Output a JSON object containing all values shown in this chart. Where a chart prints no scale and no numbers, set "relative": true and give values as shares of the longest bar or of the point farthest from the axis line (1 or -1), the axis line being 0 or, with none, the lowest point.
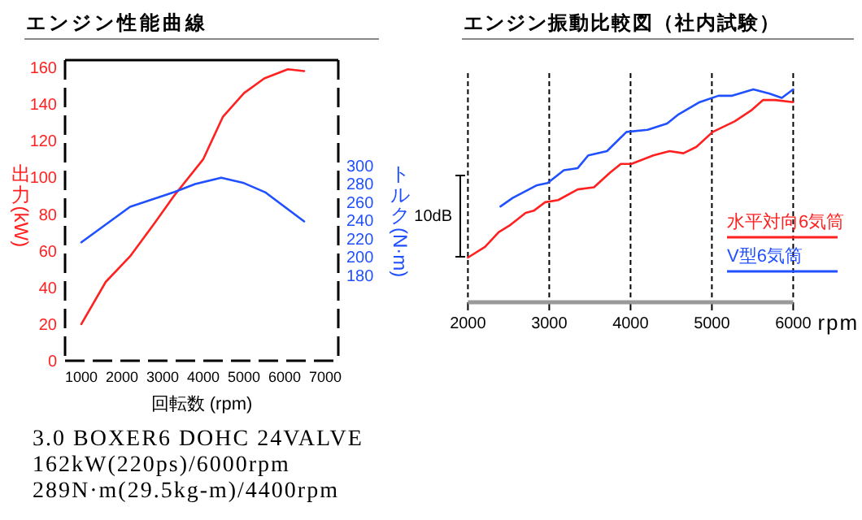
{
  "chart_data": [
    {
      "type": "line",
      "title": "エンジン性能曲線",
      "xlabel": "回転数 (rpm)",
      "ylabel": "出力 (kW)",
      "y2label": "トルク (N·m)",
      "xlim": [
        600,
        7320
      ],
      "xticks": [
        1000,
        2000,
        3000,
        4000,
        5000,
        6000,
        7000
      ],
      "ylim": [
        0,
        164
      ],
      "yticks": [
        0,
        20,
        40,
        60,
        80,
        100,
        120,
        140,
        160
      ],
      "y2lim": [
        86,
        416
      ],
      "y2ticks": [
        180,
        200,
        220,
        240,
        260,
        280,
        300
      ],
      "series": [
        {
          "color": "#ff2020",
          "x": [
            1000,
            1600,
            2200,
            2800,
            3280,
            4000,
            4480,
            5000,
            5500,
            6080,
            6480
          ],
          "values": [
            20,
            43,
            57,
            75,
            90,
            110,
            133,
            146,
            154,
            159,
            158
          ]
        },
        {
          "color": "#2050ff",
          "axis": "y2",
          "x": [
            1000,
            2200,
            2800,
            3280,
            3800,
            4440,
            5000,
            5520,
            6480
          ],
          "values": [
            216,
            255,
            264,
            271,
            280,
            287,
            281,
            271,
            239
          ]
        }
      ],
      "annotations": [
        "3.0 BOXER6 DOHC 24VALVE",
        "162kW(220ps)/6000rpm",
        "289N·m(29.5kg-m)/4400rpm"
      ]
    },
    {
      "type": "line",
      "title": "エンジン振動比較図（社内試験）",
      "xlabel": "rpm",
      "relative": true,
      "xlim": [
        2000,
        6000
      ],
      "xticks": [
        2000,
        3000,
        4000,
        5000,
        6000
      ],
      "grid": "x",
      "legend": "bottom right",
      "series": [
        {
          "name": "水平対向6気筒",
          "color": "#ff2020",
          "x": [
            2000,
            2210,
            2380,
            2510,
            2710,
            2810,
            2950,
            3110,
            3350,
            3550,
            3750,
            3880,
            4010,
            4280,
            4480,
            4650,
            4810,
            5010,
            5280,
            5480,
            5630,
            5780,
            6000
          ],
          "values": [
            0.21,
            0.26,
            0.33,
            0.36,
            0.42,
            0.43,
            0.47,
            0.48,
            0.53,
            0.54,
            0.61,
            0.65,
            0.65,
            0.69,
            0.71,
            0.7,
            0.73,
            0.8,
            0.85,
            0.9,
            0.95,
            0.95,
            0.94
          ]
        },
        {
          "name": "V型6気筒",
          "color": "#2050ff",
          "x": [
            2400,
            2550,
            2750,
            2850,
            2980,
            3180,
            3350,
            3480,
            3710,
            3950,
            4210,
            4450,
            4580,
            4850,
            5080,
            5250,
            5510,
            5710,
            5860,
            6000
          ],
          "values": [
            0.45,
            0.49,
            0.53,
            0.55,
            0.56,
            0.62,
            0.63,
            0.69,
            0.71,
            0.8,
            0.81,
            0.84,
            0.88,
            0.94,
            0.97,
            0.97,
            1,
            0.98,
            0.96,
            1
          ]
        }
      ],
      "annotations": [
        "10dB"
      ]
    }
  ]
}
